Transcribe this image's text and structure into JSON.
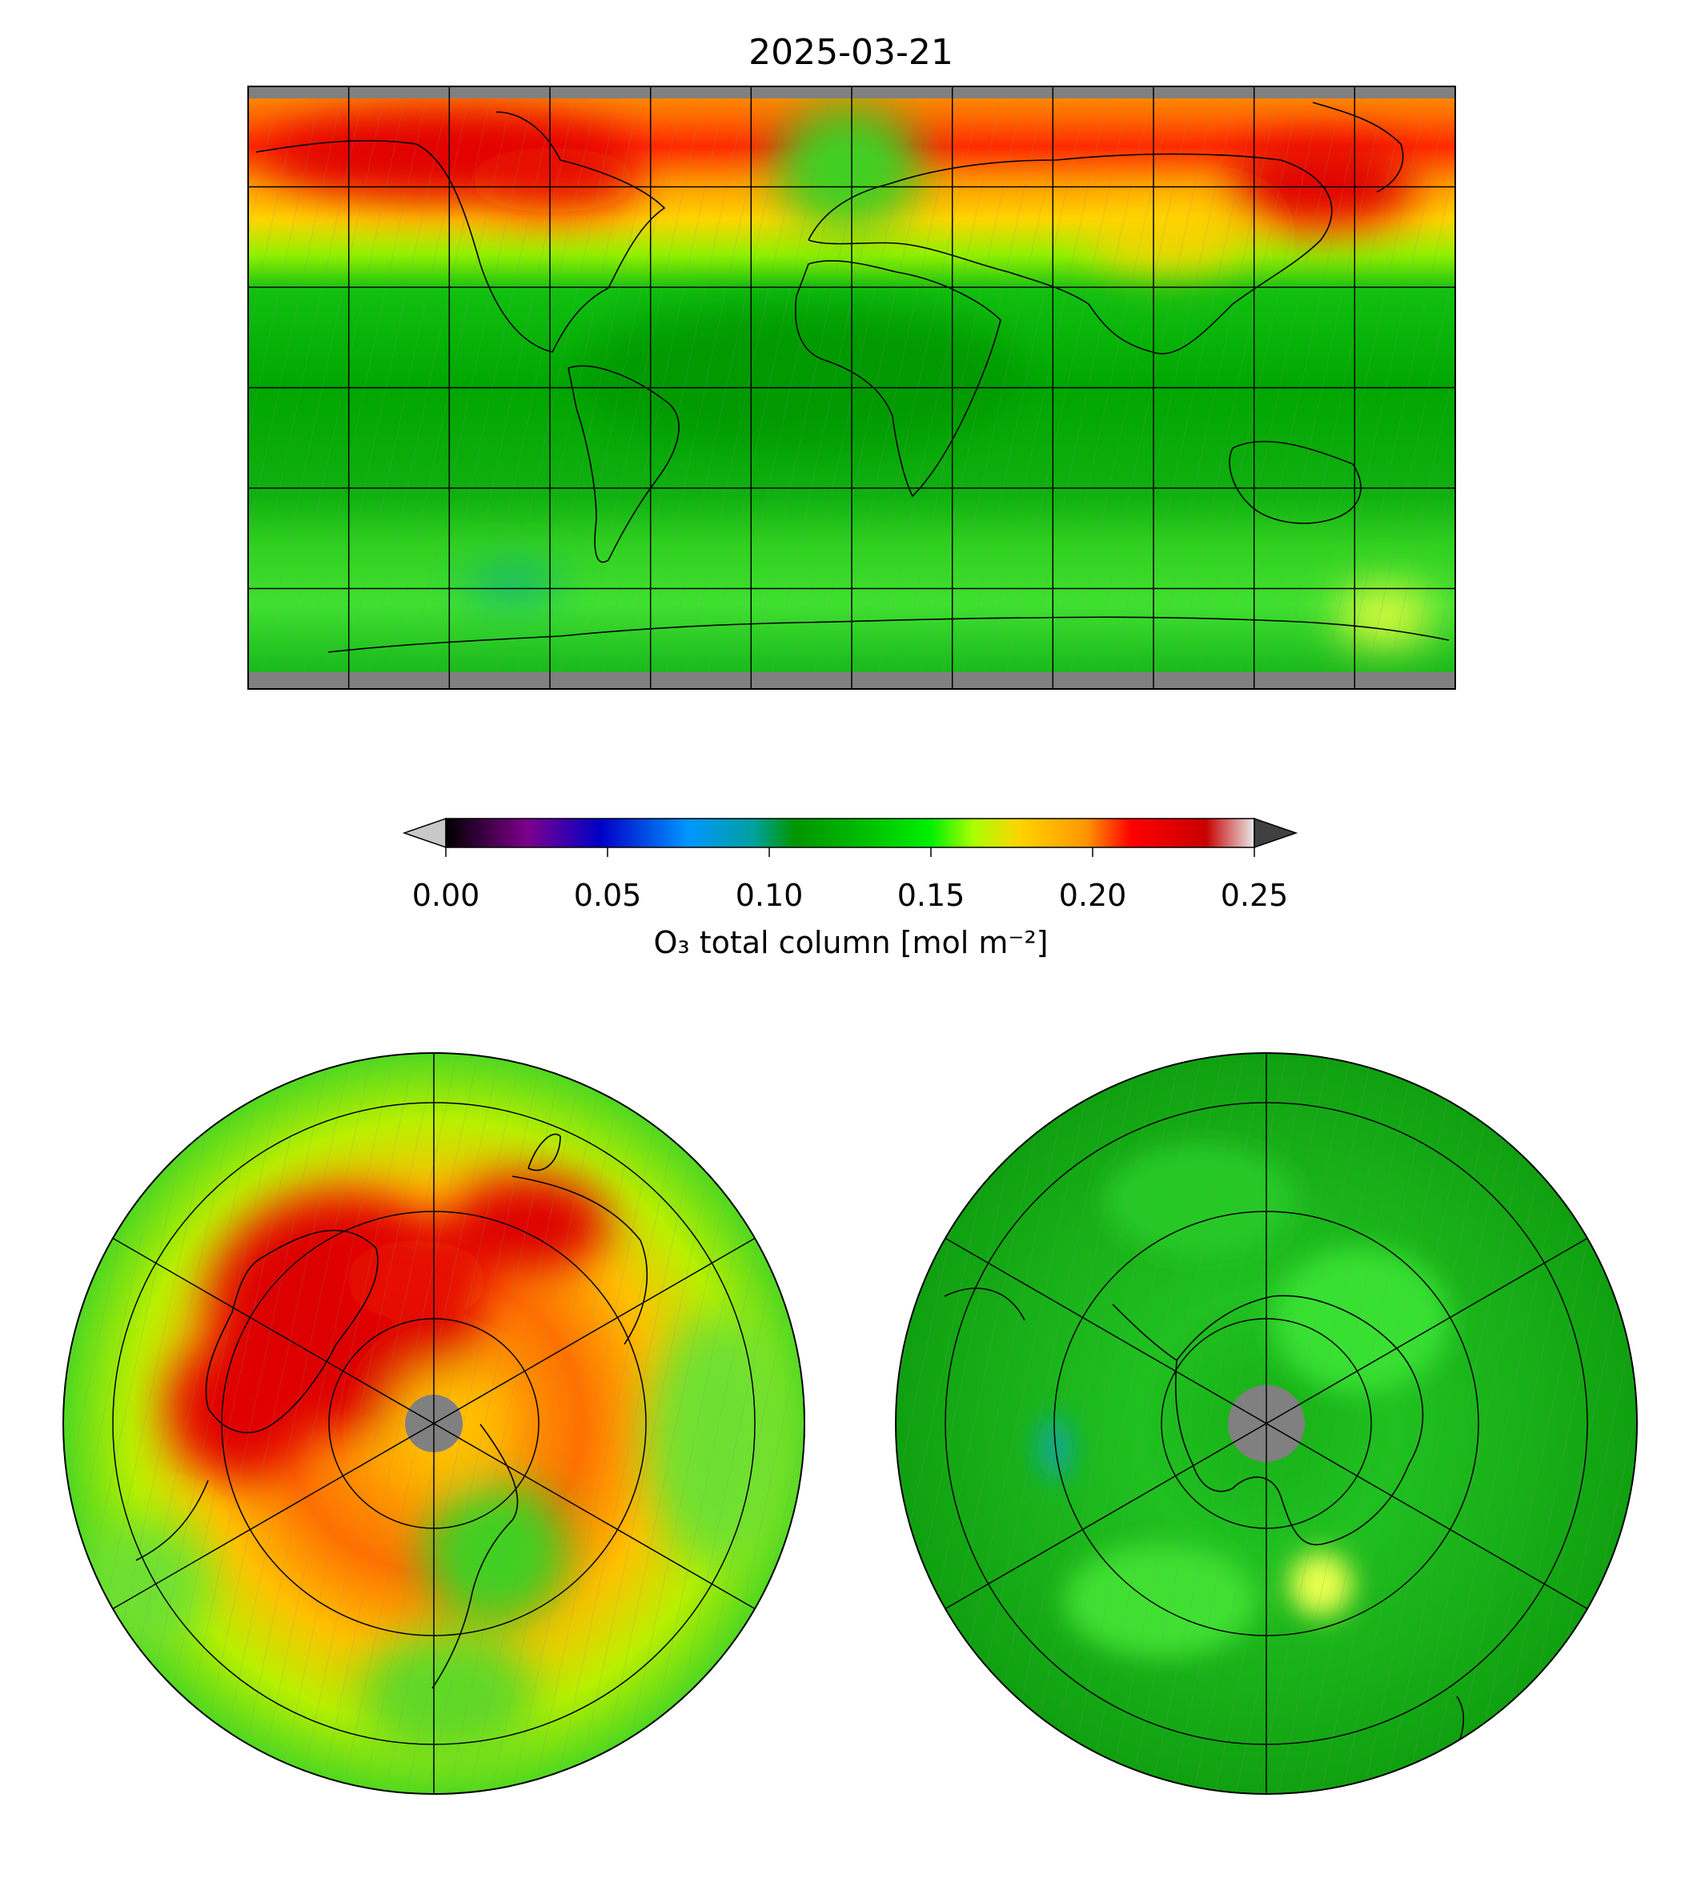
{
  "title": "2025-03-21",
  "colorbar": {
    "label": "O₃ total column [mol m⁻²]",
    "ticks": [
      "0.00",
      "0.05",
      "0.10",
      "0.15",
      "0.20",
      "0.25"
    ],
    "range": [
      0.0,
      0.25
    ],
    "extend": "both",
    "under_color": "#c8c8c8",
    "over_color": "#404040",
    "stops": [
      {
        "v": 0.0,
        "c": "#000000"
      },
      {
        "v": 0.025,
        "c": "#7d008c"
      },
      {
        "v": 0.048,
        "c": "#0000c8"
      },
      {
        "v": 0.075,
        "c": "#0096ff"
      },
      {
        "v": 0.095,
        "c": "#00a0a0"
      },
      {
        "v": 0.108,
        "c": "#009600"
      },
      {
        "v": 0.125,
        "c": "#00b400"
      },
      {
        "v": 0.15,
        "c": "#00f000"
      },
      {
        "v": 0.163,
        "c": "#aaff00"
      },
      {
        "v": 0.178,
        "c": "#ffd200"
      },
      {
        "v": 0.198,
        "c": "#ff9600"
      },
      {
        "v": 0.212,
        "c": "#ff0000"
      },
      {
        "v": 0.235,
        "c": "#c80000"
      },
      {
        "v": 0.25,
        "c": "#e8e8e8"
      }
    ]
  },
  "colors": {
    "no_data": "#808080",
    "coastline": "#000000",
    "gridline": "#000000",
    "typical_value": "#1ec81e",
    "high_value": "#e00000"
  },
  "panels": [
    {
      "name": "global-map",
      "projection": "plate-carree",
      "gridlines": true
    },
    {
      "name": "north-polar-map",
      "projection": "north-polar-stereographic",
      "gridlines": true
    },
    {
      "name": "south-polar-map",
      "projection": "south-polar-stereographic",
      "gridlines": true
    }
  ]
}
